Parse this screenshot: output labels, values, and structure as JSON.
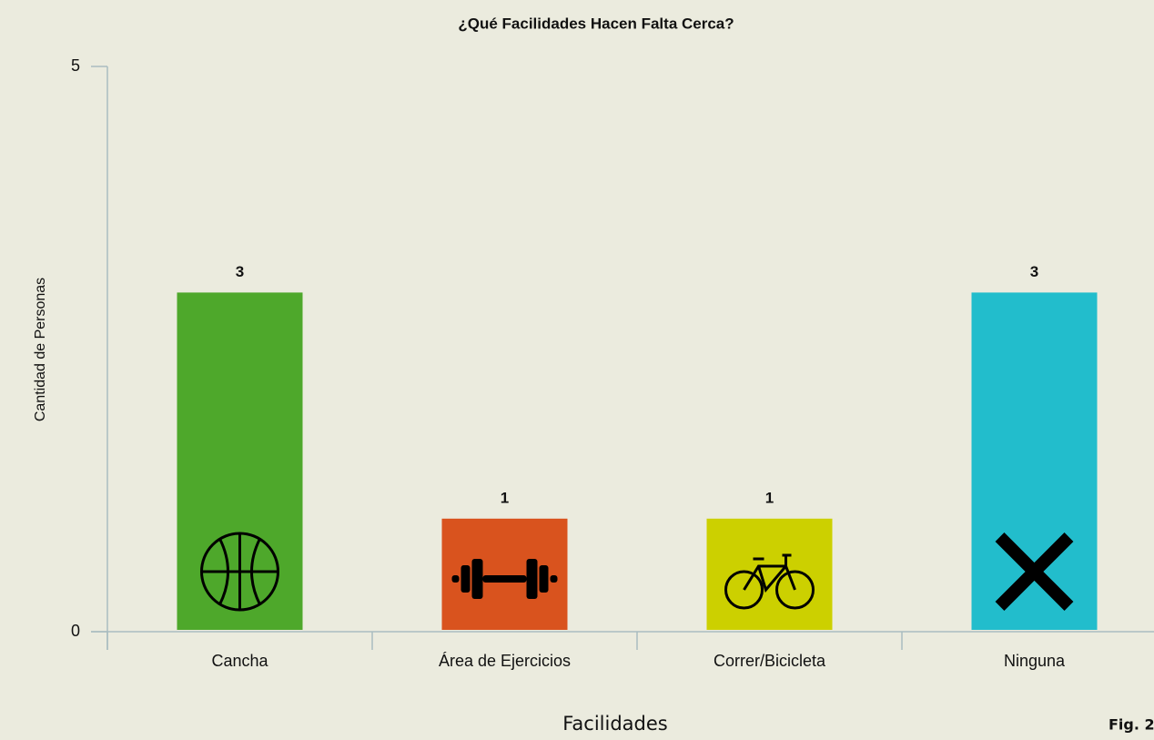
{
  "chart_data": {
    "type": "bar",
    "title": "¿Qué Facilidades Hacen Falta Cerca?",
    "x_label": "Facilidades",
    "y_label": "Cantidad de Personas",
    "figure_label": "Fig. 2",
    "categories": [
      "Cancha",
      "Área de Ejercicios",
      "Correr/Bicicleta",
      "Ninguna"
    ],
    "values": [
      3,
      1,
      1,
      3
    ],
    "colors": [
      "#4ea82b",
      "#d9531e",
      "#ccd000",
      "#22bdcc"
    ],
    "ylim": [
      0,
      5
    ],
    "yticks": [
      0,
      5
    ],
    "grid": false,
    "value_labels_shown": true
  }
}
